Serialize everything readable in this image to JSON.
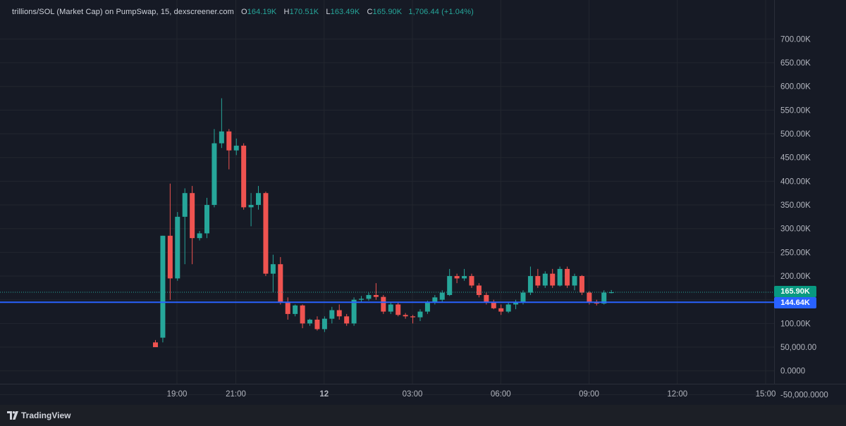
{
  "header": {
    "title": "trillions/SOL (Market Cap) on PumpSwap, 15, dexscreener.com",
    "o_label": "O",
    "o_value": "164.19K",
    "h_label": "H",
    "h_value": "170.51K",
    "l_label": "L",
    "l_value": "163.49K",
    "c_label": "C",
    "c_value": "165.90K",
    "change": "1,706.44 (+1.04%)"
  },
  "footer": {
    "brand": "TradingView"
  },
  "colors": {
    "up": "#26a69a",
    "down": "#ef5350",
    "blue_line": "#2962ff",
    "grid": "#22262f"
  },
  "price_labels": {
    "current": "165.90K",
    "line": "144.64K"
  },
  "chart_data": {
    "type": "candlestick",
    "title": "trillions/SOL (Market Cap) on PumpSwap, 15, dexscreener.com",
    "y_ticks": [
      {
        "value": 700000,
        "label": "700.00K"
      },
      {
        "value": 650000,
        "label": "650.00K"
      },
      {
        "value": 600000,
        "label": "600.00K"
      },
      {
        "value": 550000,
        "label": "550.00K"
      },
      {
        "value": 500000,
        "label": "500.00K"
      },
      {
        "value": 450000,
        "label": "450.00K"
      },
      {
        "value": 400000,
        "label": "400.00K"
      },
      {
        "value": 350000,
        "label": "350.00K"
      },
      {
        "value": 300000,
        "label": "300.00K"
      },
      {
        "value": 250000,
        "label": "250.00K"
      },
      {
        "value": 200000,
        "label": "200.00K"
      },
      {
        "value": 150000,
        "label": "150.00K"
      },
      {
        "value": 100000,
        "label": "100.00K"
      },
      {
        "value": 50000,
        "label": "50,000.00"
      },
      {
        "value": 0,
        "label": "0.0000"
      },
      {
        "value": -50000,
        "label": "-50,000.0000"
      }
    ],
    "x_ticks": [
      {
        "t": 4.0,
        "label": "19:00",
        "bold": false
      },
      {
        "t": 6.0,
        "label": "21:00",
        "bold": false
      },
      {
        "t": 9.0,
        "label": "12",
        "bold": true
      },
      {
        "t": 12.0,
        "label": "03:00",
        "bold": false
      },
      {
        "t": 15.0,
        "label": "06:00",
        "bold": false
      },
      {
        "t": 18.0,
        "label": "09:00",
        "bold": false
      },
      {
        "t": 21.0,
        "label": "12:00",
        "bold": false
      },
      {
        "t": 24.0,
        "label": "15:00",
        "bold": false
      }
    ],
    "current_price": 165900,
    "horizontal_line": 144640,
    "candles": [
      {
        "o": 60000,
        "h": 65000,
        "l": 50000,
        "c": 50000
      },
      {
        "o": 70000,
        "h": 285000,
        "l": 60000,
        "c": 285000
      },
      {
        "o": 285000,
        "h": 395000,
        "l": 150000,
        "c": 195000
      },
      {
        "o": 195000,
        "h": 335000,
        "l": 190000,
        "c": 325000
      },
      {
        "o": 325000,
        "h": 385000,
        "l": 225000,
        "c": 375000
      },
      {
        "o": 375000,
        "h": 390000,
        "l": 225000,
        "c": 280000
      },
      {
        "o": 280000,
        "h": 295000,
        "l": 275000,
        "c": 290000
      },
      {
        "o": 290000,
        "h": 365000,
        "l": 280000,
        "c": 350000
      },
      {
        "o": 350000,
        "h": 510000,
        "l": 345000,
        "c": 480000
      },
      {
        "o": 480000,
        "h": 575000,
        "l": 470000,
        "c": 505000
      },
      {
        "o": 505000,
        "h": 510000,
        "l": 425000,
        "c": 465000
      },
      {
        "o": 465000,
        "h": 490000,
        "l": 455000,
        "c": 475000
      },
      {
        "o": 475000,
        "h": 480000,
        "l": 340000,
        "c": 345000
      },
      {
        "o": 345000,
        "h": 375000,
        "l": 305000,
        "c": 350000
      },
      {
        "o": 350000,
        "h": 390000,
        "l": 340000,
        "c": 375000
      },
      {
        "o": 375000,
        "h": 378000,
        "l": 200000,
        "c": 205000
      },
      {
        "o": 205000,
        "h": 245000,
        "l": 165000,
        "c": 225000
      },
      {
        "o": 225000,
        "h": 240000,
        "l": 140000,
        "c": 145000
      },
      {
        "o": 145000,
        "h": 155000,
        "l": 108000,
        "c": 120000
      },
      {
        "o": 120000,
        "h": 140000,
        "l": 115000,
        "c": 138000
      },
      {
        "o": 138000,
        "h": 140000,
        "l": 90000,
        "c": 100000
      },
      {
        "o": 100000,
        "h": 110000,
        "l": 95000,
        "c": 108000
      },
      {
        "o": 108000,
        "h": 115000,
        "l": 85000,
        "c": 88000
      },
      {
        "o": 88000,
        "h": 115000,
        "l": 82000,
        "c": 110000
      },
      {
        "o": 110000,
        "h": 135000,
        "l": 100000,
        "c": 128000
      },
      {
        "o": 128000,
        "h": 140000,
        "l": 108000,
        "c": 115000
      },
      {
        "o": 115000,
        "h": 120000,
        "l": 95000,
        "c": 100000
      },
      {
        "o": 100000,
        "h": 155000,
        "l": 95000,
        "c": 150000
      },
      {
        "o": 150000,
        "h": 158000,
        "l": 145000,
        "c": 152000
      },
      {
        "o": 152000,
        "h": 165000,
        "l": 148000,
        "c": 160000
      },
      {
        "o": 160000,
        "h": 185000,
        "l": 150000,
        "c": 156000
      },
      {
        "o": 156000,
        "h": 160000,
        "l": 120000,
        "c": 125000
      },
      {
        "o": 125000,
        "h": 145000,
        "l": 120000,
        "c": 140000
      },
      {
        "o": 140000,
        "h": 145000,
        "l": 115000,
        "c": 118000
      },
      {
        "o": 118000,
        "h": 122000,
        "l": 110000,
        "c": 115000
      },
      {
        "o": 115000,
        "h": 118000,
        "l": 100000,
        "c": 113000
      },
      {
        "o": 113000,
        "h": 130000,
        "l": 105000,
        "c": 125000
      },
      {
        "o": 125000,
        "h": 148000,
        "l": 120000,
        "c": 145000
      },
      {
        "o": 145000,
        "h": 160000,
        "l": 140000,
        "c": 155000
      },
      {
        "o": 150000,
        "h": 170000,
        "l": 145000,
        "c": 165000
      },
      {
        "o": 160000,
        "h": 215000,
        "l": 158000,
        "c": 200000
      },
      {
        "o": 200000,
        "h": 205000,
        "l": 185000,
        "c": 195000
      },
      {
        "o": 195000,
        "h": 215000,
        "l": 190000,
        "c": 200000
      },
      {
        "o": 200000,
        "h": 205000,
        "l": 175000,
        "c": 180000
      },
      {
        "o": 180000,
        "h": 185000,
        "l": 155000,
        "c": 160000
      },
      {
        "o": 160000,
        "h": 165000,
        "l": 140000,
        "c": 145000
      },
      {
        "o": 145000,
        "h": 150000,
        "l": 130000,
        "c": 132000
      },
      {
        "o": 132000,
        "h": 140000,
        "l": 118000,
        "c": 125000
      },
      {
        "o": 125000,
        "h": 145000,
        "l": 122000,
        "c": 140000
      },
      {
        "o": 140000,
        "h": 150000,
        "l": 130000,
        "c": 145000
      },
      {
        "o": 145000,
        "h": 170000,
        "l": 140000,
        "c": 165000
      },
      {
        "o": 165000,
        "h": 220000,
        "l": 160000,
        "c": 200000
      },
      {
        "o": 200000,
        "h": 215000,
        "l": 175000,
        "c": 180000
      },
      {
        "o": 180000,
        "h": 210000,
        "l": 175000,
        "c": 205000
      },
      {
        "o": 205000,
        "h": 215000,
        "l": 175000,
        "c": 180000
      },
      {
        "o": 180000,
        "h": 220000,
        "l": 178000,
        "c": 215000
      },
      {
        "o": 215000,
        "h": 220000,
        "l": 175000,
        "c": 180000
      },
      {
        "o": 180000,
        "h": 205000,
        "l": 170000,
        "c": 200000
      },
      {
        "o": 200000,
        "h": 202000,
        "l": 160000,
        "c": 165000
      },
      {
        "o": 165000,
        "h": 168000,
        "l": 140000,
        "c": 145000
      },
      {
        "o": 145000,
        "h": 150000,
        "l": 138000,
        "c": 142000
      },
      {
        "o": 142000,
        "h": 170000,
        "l": 140000,
        "c": 165000
      },
      {
        "o": 164190,
        "h": 170510,
        "l": 163490,
        "c": 165900
      }
    ]
  }
}
